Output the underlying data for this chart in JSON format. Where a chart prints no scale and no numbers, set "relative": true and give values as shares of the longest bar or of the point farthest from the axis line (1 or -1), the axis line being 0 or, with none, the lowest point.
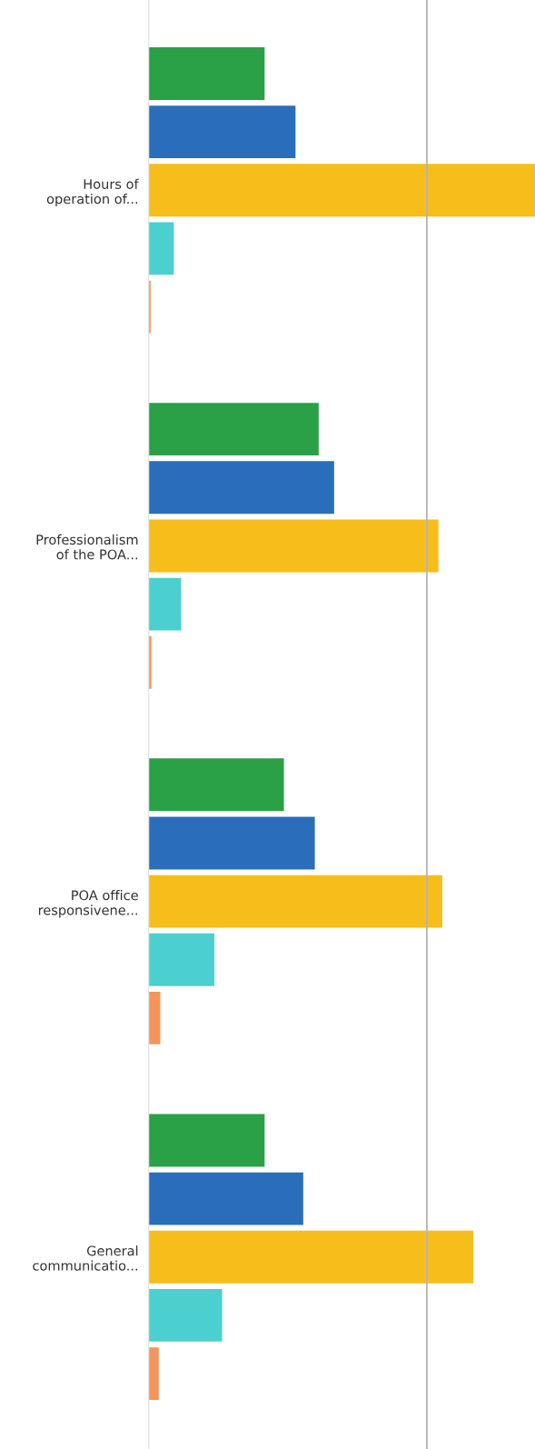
{
  "chart_data": {
    "type": "bar",
    "orientation": "horizontal",
    "relative": true,
    "categories": [
      "Hours of\noperation of...",
      "Professionalism\nof the POA...",
      "POA office\nresponsivene...",
      "General\ncommunicatio..."
    ],
    "series": [
      {
        "color": "#2aa147",
        "values": [
          0.3,
          0.44,
          0.35,
          0.3
        ]
      },
      {
        "color": "#2a6ebb",
        "values": [
          0.38,
          0.48,
          0.43,
          0.4
        ]
      },
      {
        "color": "#f7bd1b",
        "values": [
          1,
          0.75,
          0.76,
          0.84
        ]
      },
      {
        "color": "#4ccfcf",
        "values": [
          0.065,
          0.084,
          0.17,
          0.19
        ]
      },
      {
        "color": "#f5955a",
        "values": [
          0.005,
          0.007,
          0.03,
          0.026
        ]
      }
    ],
    "ref_lines": [
      {
        "axis": "x",
        "value": 0.72,
        "color": "#b5b5b5"
      }
    ],
    "legend": false,
    "grid": false
  }
}
